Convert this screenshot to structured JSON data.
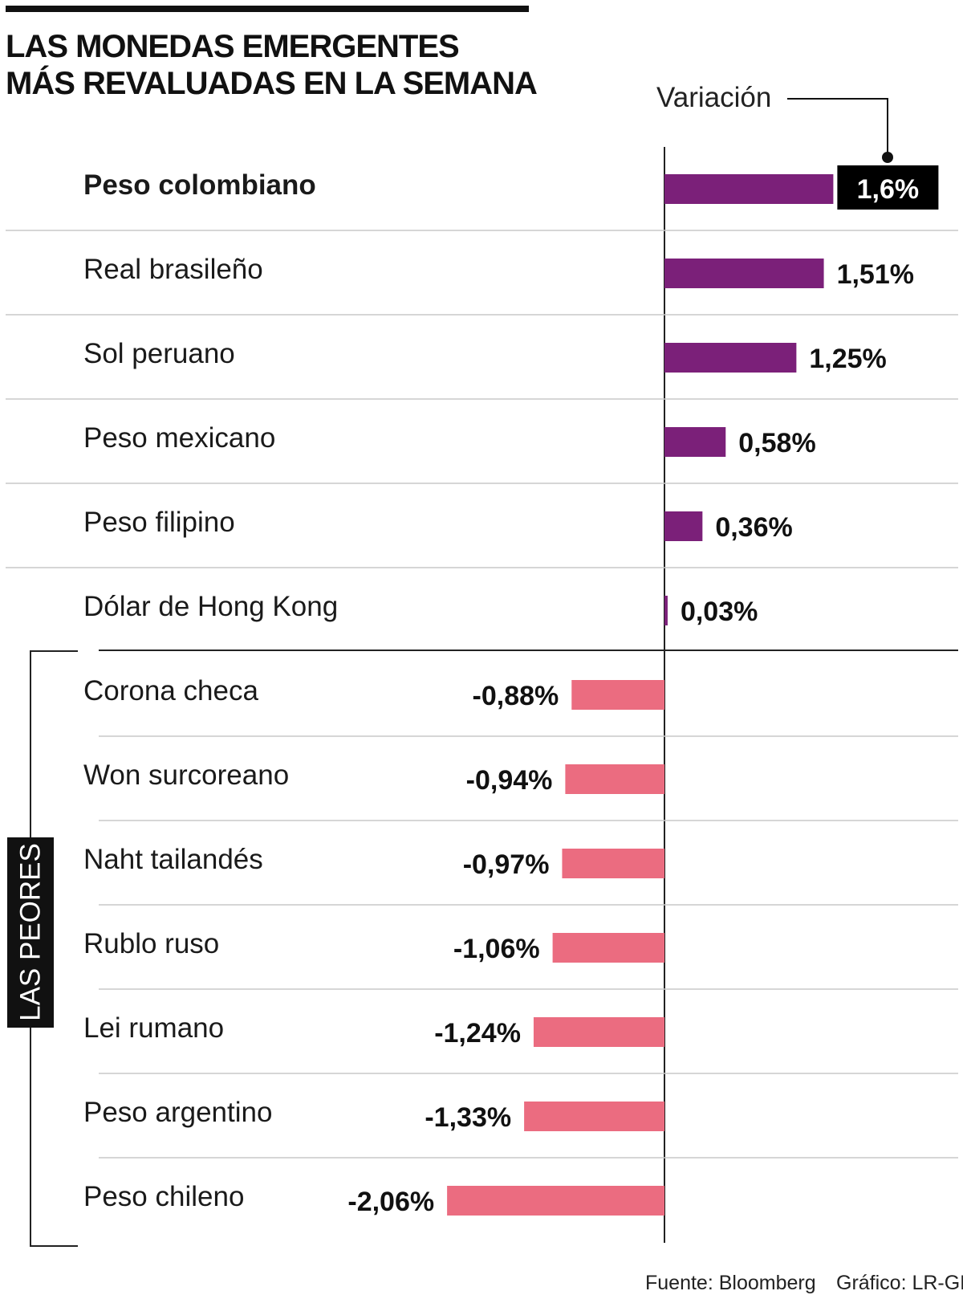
{
  "title": {
    "line1": "LAS MONEDAS EMERGENTES",
    "line2": "MÁS REVALUADAS EN LA SEMANA"
  },
  "variation_label": "Variación",
  "group_label": "LAS PEORES",
  "footer": {
    "source": "Fuente: Bloomberg",
    "credit": "Gráfico: LR-GR"
  },
  "colors": {
    "positive": "#7b2079",
    "negative": "#eb6c80",
    "highlight_box": "#000000",
    "text": "#1a1a1a"
  },
  "chart_data": {
    "type": "bar",
    "orientation": "horizontal",
    "title": "LAS MONEDAS EMERGENTES MÁS REVALUADAS EN LA SEMANA",
    "value_axis_label": "Variación",
    "unit": "%",
    "categories": [
      "Peso colombiano",
      "Real brasileño",
      "Sol peruano",
      "Peso mexicano",
      "Peso filipino",
      "Dólar de Hong Kong",
      "Corona checa",
      "Won surcoreano",
      "Naht tailandés",
      "Rublo ruso",
      "Lei rumano",
      "Peso argentino",
      "Peso chileno"
    ],
    "values": [
      1.6,
      1.51,
      1.25,
      0.58,
      0.36,
      0.03,
      -0.88,
      -0.94,
      -0.97,
      -1.06,
      -1.24,
      -1.33,
      -2.06
    ],
    "value_labels": [
      "1,6%",
      "1,51%",
      "1,25%",
      "0,58%",
      "0,36%",
      "0,03%",
      "-0,88%",
      "-0,94%",
      "-0,97%",
      "-1,06%",
      "-1,24%",
      "-1,33%",
      "-2,06%"
    ],
    "highlighted_category": "Peso colombiano",
    "groups": [
      {
        "name": "",
        "from": 0,
        "to": 5
      },
      {
        "name": "LAS PEORES",
        "from": 6,
        "to": 12
      }
    ],
    "source": "Bloomberg"
  }
}
